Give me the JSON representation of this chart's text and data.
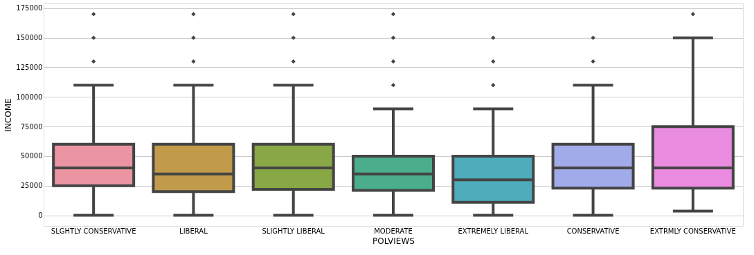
{
  "chart_data": {
    "type": "box",
    "xlabel": "POLVIEWS",
    "ylabel": "INCOME",
    "categories": [
      "SLGHTLY CONSERVATIVE",
      "LIBERAL",
      "SLIGHTLY LIBERAL",
      "MODERATE",
      "EXTREMELY LIBERAL",
      "CONSERVATIVE",
      "EXTRMLY CONSERVATIVE"
    ],
    "colors": [
      "#ea95a1",
      "#c19a4a",
      "#87a845",
      "#4aad8c",
      "#4eacbb",
      "#a2abe9",
      "#e98bde"
    ],
    "boxes": [
      {
        "low": 0,
        "q1": 25000,
        "median": 40000,
        "q3": 60000,
        "high": 110000,
        "outliers": [
          130000,
          150000,
          170000
        ]
      },
      {
        "low": 0,
        "q1": 20000,
        "median": 35000,
        "q3": 60000,
        "high": 110000,
        "outliers": [
          130000,
          150000,
          170000
        ]
      },
      {
        "low": 0,
        "q1": 22000,
        "median": 40000,
        "q3": 60000,
        "high": 110000,
        "outliers": [
          130000,
          150000,
          170000
        ]
      },
      {
        "low": 0,
        "q1": 21000,
        "median": 35000,
        "q3": 50000,
        "high": 90000,
        "outliers": [
          110000,
          130000,
          150000,
          170000
        ]
      },
      {
        "low": 0,
        "q1": 11000,
        "median": 30000,
        "q3": 50000,
        "high": 90000,
        "outliers": [
          110000,
          130000,
          150000
        ]
      },
      {
        "low": 0,
        "q1": 23000,
        "median": 40000,
        "q3": 60000,
        "high": 110000,
        "outliers": [
          130000,
          150000
        ]
      },
      {
        "low": 3500,
        "q1": 23000,
        "median": 40000,
        "q3": 75000,
        "high": 150000,
        "outliers": [
          170000
        ]
      }
    ],
    "ylim": [
      -9000,
      179000
    ],
    "yticks": [
      0,
      25000,
      50000,
      75000,
      100000,
      125000,
      150000,
      175000
    ],
    "grid": "y"
  }
}
